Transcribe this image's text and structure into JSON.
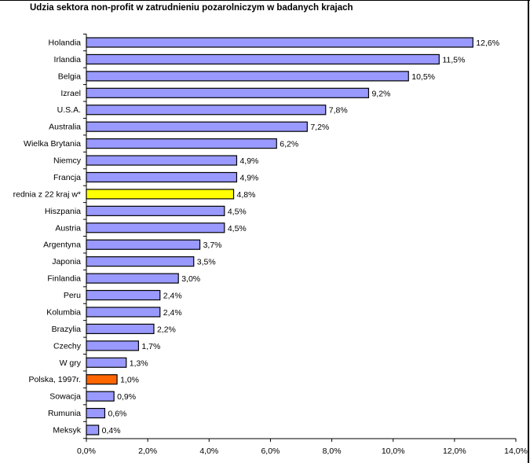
{
  "title": "Udzia sektora non-profit w zatrudnieniu pozarolniczym w badanych krajach",
  "colors": {
    "bar_default": "#9999ff",
    "bar_highlight_average": "#ffff00",
    "bar_highlight_poland": "#ff6600",
    "bar_stroke": "#000000"
  },
  "chart_data": {
    "type": "bar",
    "orientation": "horizontal",
    "title": "Udzia sektora non-profit w zatrudnieniu pozarolniczym w badanych krajach",
    "xlabel": "",
    "ylabel": "",
    "xlim": [
      0,
      14
    ],
    "grid": false,
    "legend": "none",
    "x_ticks": [
      "0,0%",
      "2,0%",
      "4,0%",
      "6,0%",
      "8,0%",
      "10,0%",
      "12,0%",
      "14,0%"
    ],
    "categories": [
      "Holandia",
      "Irlandia",
      "Belgia",
      "Izrael",
      "U.S.A.",
      "Australia",
      "Wielka Brytania",
      "Niemcy",
      "Francja",
      "rednia z 22 kraj w*",
      "Hiszpania",
      "Austria",
      "Argentyna",
      "Japonia",
      "Finlandia",
      "Peru",
      "Kolumbia",
      "Brazylia",
      "Czechy",
      "W gry",
      "Polska, 1997r.",
      "Sowacja",
      "Rumunia",
      "Meksyk"
    ],
    "values": [
      12.6,
      11.5,
      10.5,
      9.2,
      7.8,
      7.2,
      6.2,
      4.9,
      4.9,
      4.8,
      4.5,
      4.5,
      3.7,
      3.5,
      3.0,
      2.4,
      2.4,
      2.2,
      1.7,
      1.3,
      1.0,
      0.9,
      0.6,
      0.4
    ],
    "value_labels": [
      "12,6%",
      "11,5%",
      "10,5%",
      "9,2%",
      "7,8%",
      "7,2%",
      "6,2%",
      "4,9%",
      "4,9%",
      "4,8%",
      "4,5%",
      "4,5%",
      "3,7%",
      "3,5%",
      "3,0%",
      "2,4%",
      "2,4%",
      "2,2%",
      "1,7%",
      "1,3%",
      "1,0%",
      "0,9%",
      "0,6%",
      "0,4%"
    ],
    "highlight": {
      "rednia z 22 kraj w*": "#ffff00",
      "Polska, 1997r.": "#ff6600"
    }
  }
}
